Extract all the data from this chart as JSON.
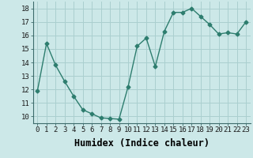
{
  "x": [
    0,
    1,
    2,
    3,
    4,
    5,
    6,
    7,
    8,
    9,
    10,
    11,
    12,
    13,
    14,
    15,
    16,
    17,
    18,
    19,
    20,
    21,
    22,
    23
  ],
  "y": [
    11.9,
    15.4,
    13.8,
    12.6,
    11.5,
    10.5,
    10.2,
    9.9,
    9.85,
    9.8,
    12.2,
    15.2,
    15.8,
    13.7,
    16.3,
    17.7,
    17.7,
    18.0,
    17.4,
    16.8,
    16.1,
    16.2,
    16.1,
    17.0
  ],
  "line_color": "#2d7d6e",
  "marker": "D",
  "markersize": 2.5,
  "linewidth": 1.0,
  "xlabel": "Humidex (Indice chaleur)",
  "xlim": [
    -0.5,
    23.5
  ],
  "ylim": [
    9.5,
    18.5
  ],
  "yticks": [
    10,
    11,
    12,
    13,
    14,
    15,
    16,
    17,
    18
  ],
  "xtick_labels": [
    "0",
    "1",
    "2",
    "3",
    "4",
    "5",
    "6",
    "7",
    "8",
    "9",
    "10",
    "11",
    "12",
    "13",
    "14",
    "15",
    "16",
    "17",
    "18",
    "19",
    "20",
    "21",
    "22",
    "23"
  ],
  "bg_color": "#cce8e8",
  "grid_color": "#aacfcf",
  "tick_fontsize": 6.5,
  "xlabel_fontsize": 8.5
}
